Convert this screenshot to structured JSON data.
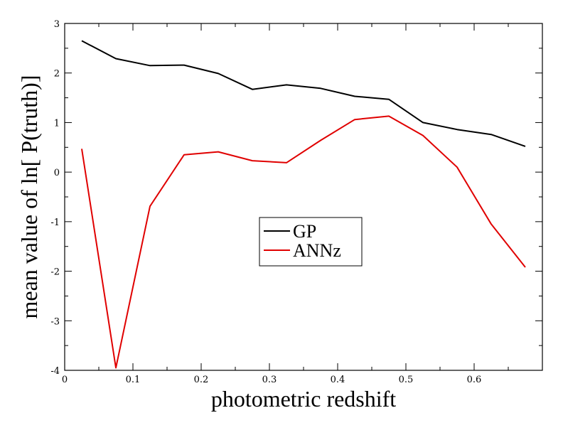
{
  "chart_data": {
    "type": "line",
    "title": "",
    "xlabel": "photometric redshift",
    "ylabel": "mean value of ln[ P(truth)]",
    "xlim": [
      0,
      0.7
    ],
    "ylim": [
      -4,
      3
    ],
    "x_ticks": [
      0,
      0.1,
      0.2,
      0.3,
      0.4,
      0.5,
      0.6
    ],
    "x_tick_labels": [
      "0",
      "0.1",
      "0.2",
      "0.3",
      "0.4",
      "0.5",
      "0.6"
    ],
    "y_ticks": [
      -4,
      -3,
      -2,
      -1,
      0,
      1,
      2,
      3
    ],
    "y_tick_labels": [
      "-4",
      "-3",
      "-2",
      "-1",
      "0",
      "1",
      "2",
      "3"
    ],
    "grid": false,
    "legend_position": "center",
    "x": [
      0.025,
      0.075,
      0.125,
      0.175,
      0.225,
      0.275,
      0.325,
      0.375,
      0.425,
      0.475,
      0.525,
      0.575,
      0.625,
      0.675
    ],
    "series": [
      {
        "name": "GP",
        "color": "#000000",
        "values": [
          2.65,
          2.29,
          2.15,
          2.16,
          1.99,
          1.67,
          1.76,
          1.69,
          1.53,
          1.47,
          1.0,
          0.86,
          0.76,
          0.52
        ]
      },
      {
        "name": "ANNz",
        "color": "#e00000",
        "values": [
          0.47,
          -3.95,
          -0.69,
          0.35,
          0.41,
          0.23,
          0.19,
          0.64,
          1.06,
          1.13,
          0.74,
          0.1,
          -1.05,
          -1.92
        ]
      }
    ]
  }
}
